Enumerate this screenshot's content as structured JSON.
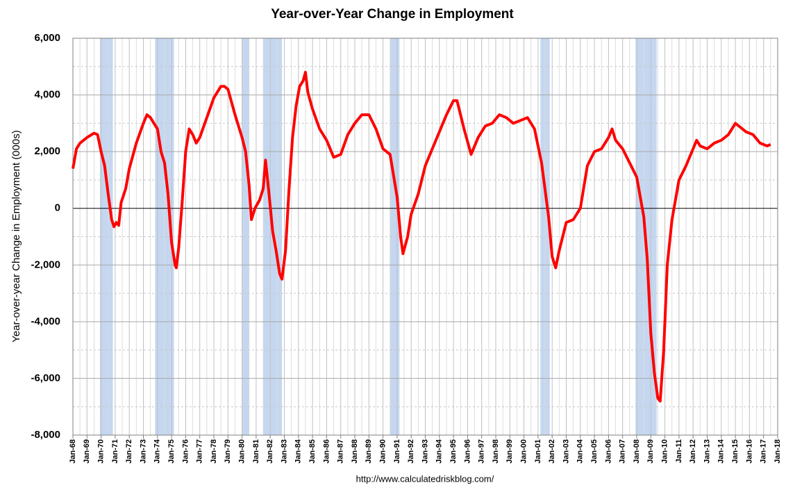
{
  "chart_data": {
    "type": "line",
    "title": "Year-over-Year Change in Employment",
    "ylabel": "Year-over-year Change in Employment (000s)",
    "source": "http://www.calculatedriskblog.com/",
    "color": "#ff0000",
    "shade_color": "#c5d7f0",
    "grid": true,
    "xlim": [
      "Jan-68",
      "Jan-18"
    ],
    "xticks": [
      "Jan-68",
      "Jan-69",
      "Jan-70",
      "Jan-71",
      "Jan-72",
      "Jan-73",
      "Jan-74",
      "Jan-75",
      "Jan-76",
      "Jan-77",
      "Jan-78",
      "Jan-79",
      "Jan-80",
      "Jan-81",
      "Jan-82",
      "Jan-83",
      "Jan-84",
      "Jan-85",
      "Jan-86",
      "Jan-87",
      "Jan-88",
      "Jan-89",
      "Jan-90",
      "Jan-91",
      "Jan-92",
      "Jan-93",
      "Jan-94",
      "Jan-95",
      "Jan-96",
      "Jan-97",
      "Jan-98",
      "Jan-99",
      "Jan-00",
      "Jan-01",
      "Jan-02",
      "Jan-03",
      "Jan-04",
      "Jan-05",
      "Jan-06",
      "Jan-07",
      "Jan-08",
      "Jan-09",
      "Jan-10",
      "Jan-11",
      "Jan-12",
      "Jan-13",
      "Jan-14",
      "Jan-15",
      "Jan-16",
      "Jan-17",
      "Jan-18"
    ],
    "ylim": [
      -8000,
      6000
    ],
    "yticks": [
      {
        "value": -8000,
        "label": "-8,000"
      },
      {
        "value": -6000,
        "label": "-6,000"
      },
      {
        "value": -4000,
        "label": "-4,000"
      },
      {
        "value": -2000,
        "label": "-2,000"
      },
      0,
      {
        "value": 2000,
        "label": "2,000"
      },
      {
        "value": 4000,
        "label": "4,000"
      },
      {
        "value": 6000,
        "label": "6,000"
      }
    ],
    "recessions": [
      [
        "Dec-69",
        "Nov-70"
      ],
      [
        "Nov-73",
        "Mar-75"
      ],
      [
        "Jan-80",
        "Jul-80"
      ],
      [
        "Jul-81",
        "Nov-82"
      ],
      [
        "Jul-90",
        "Mar-91"
      ],
      [
        "Mar-01",
        "Nov-01"
      ],
      [
        "Dec-07",
        "Jun-09"
      ]
    ],
    "x": [
      "Jan-68",
      "Apr-68",
      "Jul-68",
      "Jan-69",
      "Jul-69",
      "Oct-69",
      "Jan-70",
      "Apr-70",
      "Jul-70",
      "Oct-70",
      "Dec-70",
      "Feb-71",
      "Apr-71",
      "Jun-71",
      "Oct-71",
      "Jan-72",
      "Jul-72",
      "Jan-73",
      "Apr-73",
      "Jul-73",
      "Oct-73",
      "Jan-74",
      "Apr-74",
      "Jul-74",
      "Oct-74",
      "Jan-75",
      "Apr-75",
      "May-75",
      "Jul-75",
      "Oct-75",
      "Jan-76",
      "Apr-76",
      "Jul-76",
      "Oct-76",
      "Jan-77",
      "Jul-77",
      "Jan-78",
      "Jul-78",
      "Oct-78",
      "Jan-79",
      "Jul-79",
      "Jan-80",
      "Apr-80",
      "Jul-80",
      "Sep-80",
      "Dec-80",
      "Apr-81",
      "Jul-81",
      "Sep-81",
      "Dec-81",
      "Mar-82",
      "Jun-82",
      "Sep-82",
      "Nov-82",
      "Feb-83",
      "May-83",
      "Aug-83",
      "Nov-83",
      "Feb-84",
      "May-84",
      "Jul-84",
      "Sep-84",
      "Jan-85",
      "Jul-85",
      "Jan-86",
      "Jul-86",
      "Jan-87",
      "Jul-87",
      "Jan-88",
      "Jul-88",
      "Jan-89",
      "Jul-89",
      "Jan-90",
      "Jul-90",
      "Jan-91",
      "Apr-91",
      "Jun-91",
      "Oct-91",
      "Jan-92",
      "Jul-92",
      "Jan-93",
      "Jul-93",
      "Jan-94",
      "Jul-94",
      "Jan-95",
      "Apr-95",
      "Oct-95",
      "Apr-96",
      "Oct-96",
      "Apr-97",
      "Oct-97",
      "Apr-98",
      "Oct-98",
      "Apr-99",
      "Oct-99",
      "Apr-00",
      "Oct-00",
      "Apr-01",
      "Oct-01",
      "Jan-02",
      "Apr-02",
      "Jul-02",
      "Jan-03",
      "Jul-03",
      "Jan-04",
      "Jul-04",
      "Jan-05",
      "Jul-05",
      "Jan-06",
      "Apr-06",
      "Jul-06",
      "Jan-07",
      "Jul-07",
      "Jan-08",
      "Jul-08",
      "Oct-08",
      "Jan-09",
      "Apr-09",
      "Jul-09",
      "Sep-09",
      "Dec-09",
      "Mar-10",
      "Jul-10",
      "Jan-11",
      "Jul-11",
      "Jan-12",
      "Apr-12",
      "Jul-12",
      "Jan-13",
      "Jul-13",
      "Jan-14",
      "Jul-14",
      "Jan-15",
      "Apr-15",
      "Oct-15",
      "Apr-16",
      "Oct-16",
      "Apr-17",
      "Jul-17"
    ],
    "values": [
      1400,
      2100,
      2300,
      2500,
      2650,
      2600,
      2000,
      1500,
      500,
      -400,
      -650,
      -500,
      -600,
      200,
      700,
      1400,
      2300,
      3000,
      3300,
      3200,
      3000,
      2800,
      2000,
      1600,
      500,
      -1200,
      -2000,
      -2100,
      -1400,
      200,
      2000,
      2800,
      2600,
      2300,
      2500,
      3200,
      3900,
      4300,
      4300,
      4200,
      3300,
      2500,
      2000,
      800,
      -400,
      0,
      300,
      700,
      1700,
      500,
      -800,
      -1500,
      -2300,
      -2500,
      -1500,
      700,
      2500,
      3600,
      4300,
      4500,
      4800,
      4100,
      3500,
      2800,
      2400,
      1800,
      1900,
      2600,
      3000,
      3300,
      3300,
      2800,
      2100,
      1900,
      400,
      -1000,
      -1600,
      -1000,
      -200,
      500,
      1500,
      2100,
      2700,
      3300,
      3800,
      3800,
      2800,
      1900,
      2500,
      2900,
      3000,
      3300,
      3200,
      3000,
      3100,
      3200,
      2800,
      1600,
      -300,
      -1700,
      -2100,
      -1500,
      -500,
      -400,
      0,
      1500,
      2000,
      2100,
      2500,
      2800,
      2400,
      2100,
      1600,
      1100,
      -300,
      -1800,
      -4400,
      -5800,
      -6700,
      -6800,
      -5000,
      -2000,
      -400,
      1000,
      1500,
      2100,
      2400,
      2200,
      2100,
      2300,
      2400,
      2600,
      3000,
      2900,
      2700,
      2600,
      2300,
      2200,
      2250
    ]
  }
}
